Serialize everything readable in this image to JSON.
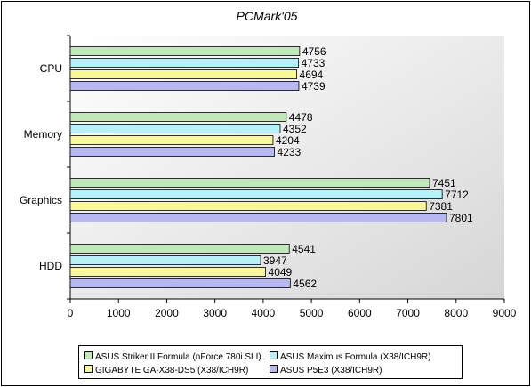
{
  "chart_data": {
    "type": "bar",
    "orientation": "horizontal",
    "title": "PCMark'05",
    "categories": [
      "CPU",
      "Memory",
      "Graphics",
      "HDD"
    ],
    "series": [
      {
        "name": "ASUS Striker II Formula (nForce 780i SLI)",
        "color": "#C0E8B8",
        "values": [
          4756,
          4478,
          7451,
          4541
        ]
      },
      {
        "name": "ASUS Maximus Formula (X38/ICH9R)",
        "color": "#B8F0F8",
        "values": [
          4733,
          4352,
          7712,
          3947
        ]
      },
      {
        "name": "GIGABYTE GA-X38-DS5 (X38/ICH9R)",
        "color": "#F8F898",
        "values": [
          4694,
          4204,
          7381,
          4049
        ]
      },
      {
        "name": "ASUS P5E3 (X38/ICH9R)",
        "color": "#B8B8F0",
        "values": [
          4739,
          4233,
          7801,
          4562
        ]
      }
    ],
    "xlim": [
      0,
      9000
    ],
    "xticks": [
      "0",
      "1000",
      "2000",
      "3000",
      "4000",
      "5000",
      "6000",
      "7000",
      "8000",
      "9000"
    ],
    "grid": false,
    "legend_position": "bottom"
  }
}
